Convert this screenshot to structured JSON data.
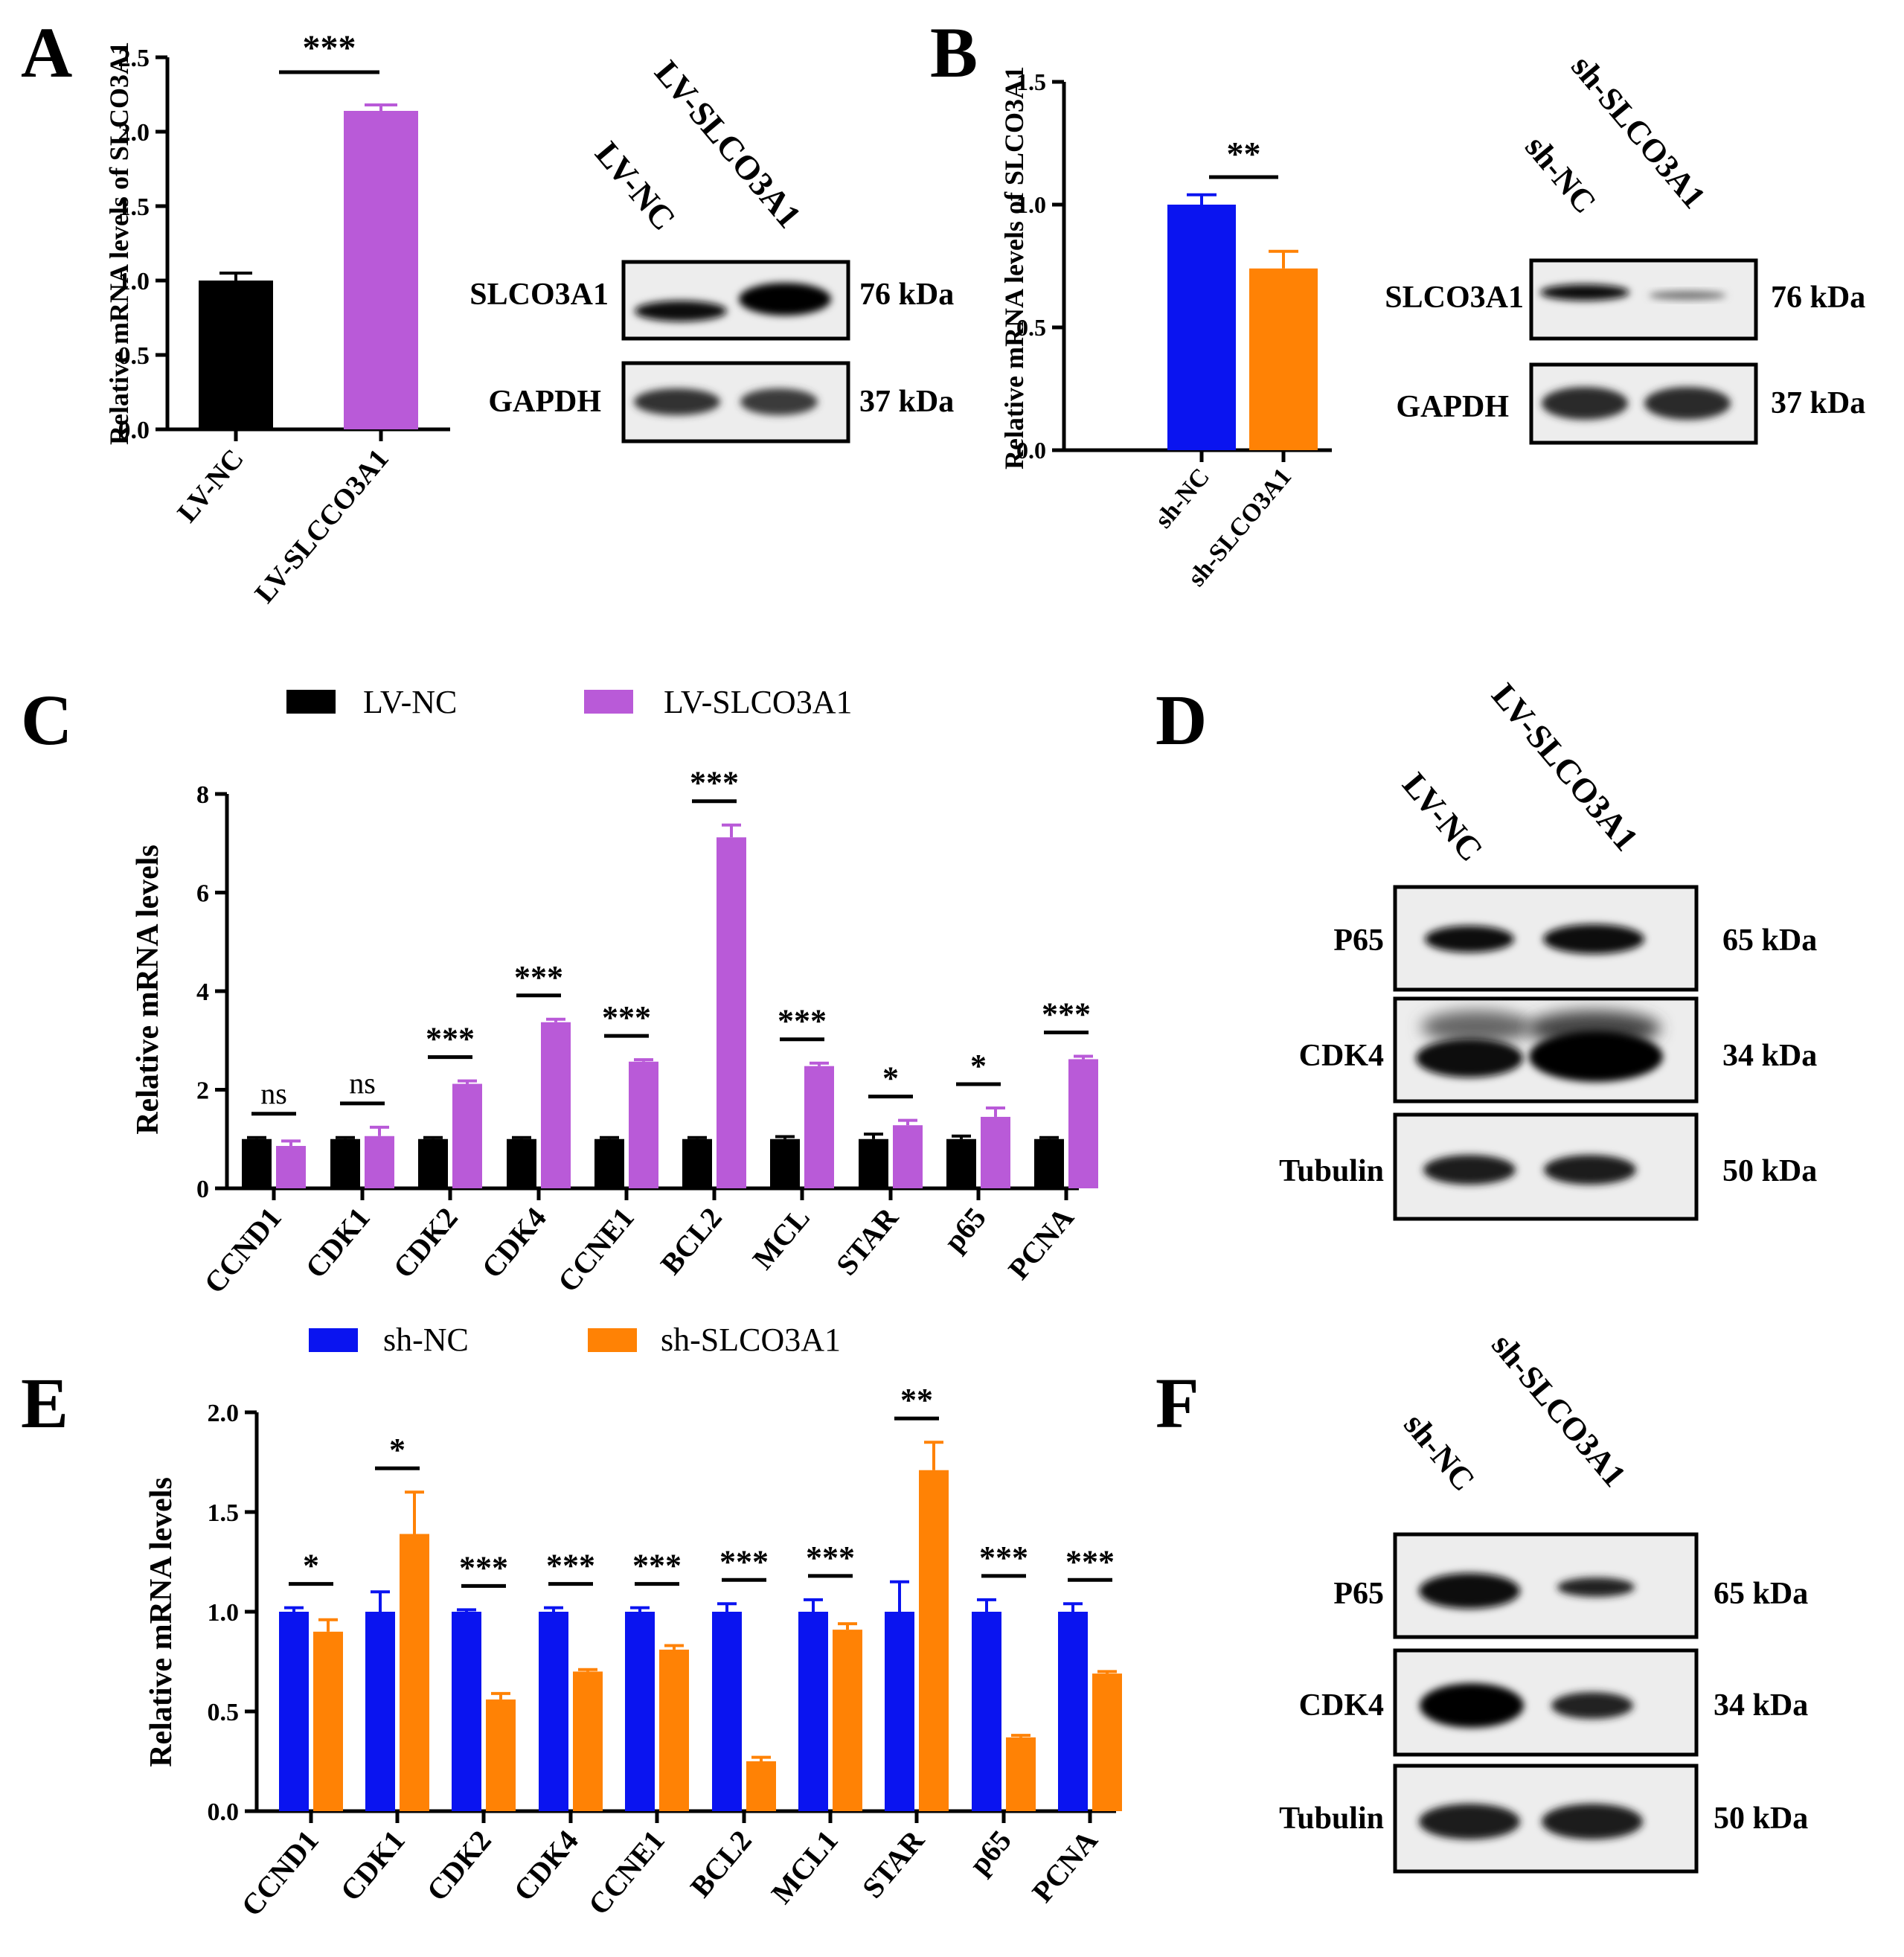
{
  "colors": {
    "lv_nc": "#000000",
    "lv_slco3a1": "#b95ad8",
    "sh_nc": "#0a14f0",
    "sh_slco3a1": "#ff8205"
  },
  "panels": {
    "A": {
      "letter": "A",
      "ylabel": "Relative mRNA levels of SLCO3A1",
      "blot_top_labels": [
        "LV-NC",
        "LV-SLCO3A1"
      ],
      "blot_rows": [
        {
          "name": "SLCO3A1",
          "kda": "76 kDa"
        },
        {
          "name": "GAPDH",
          "kda": "37 kDa"
        }
      ]
    },
    "B": {
      "letter": "B",
      "ylabel": "Relative mRNA levels of SLCO3A1",
      "blot_top_labels": [
        "sh-NC",
        "sh-SLCO3A1"
      ],
      "blot_rows": [
        {
          "name": "SLCO3A1",
          "kda": "76 kDa"
        },
        {
          "name": "GAPDH",
          "kda": "37 kDa"
        }
      ]
    },
    "C": {
      "letter": "C",
      "ylabel": "Relative mRNA levels"
    },
    "D": {
      "letter": "D",
      "blot_top_labels": [
        "LV-NC",
        "LV-SLCO3A1"
      ],
      "blot_rows": [
        {
          "name": "P65",
          "kda": "65 kDa"
        },
        {
          "name": "CDK4",
          "kda": "34 kDa"
        },
        {
          "name": "Tubulin",
          "kda": "50 kDa"
        }
      ]
    },
    "E": {
      "letter": "E",
      "ylabel": "Relative mRNA levels"
    },
    "F": {
      "letter": "F",
      "blot_top_labels": [
        "sh-NC",
        "sh-SLCO3A1"
      ],
      "blot_rows": [
        {
          "name": "P65",
          "kda": "65 kDa"
        },
        {
          "name": "CDK4",
          "kda": "34 kDa"
        },
        {
          "name": "Tubulin",
          "kda": "50 kDa"
        }
      ]
    }
  },
  "chart_data": [
    {
      "id": "A",
      "type": "bar",
      "categories": [
        "LV-NC",
        "LV-SLCCO3A1"
      ],
      "values": [
        1.0,
        2.14
      ],
      "errors": [
        0.05,
        0.04
      ],
      "colors": [
        "#000000",
        "#b95ad8"
      ],
      "significance": "***",
      "ylim": [
        0,
        2.5
      ],
      "yticks": [
        "0.0",
        "0.5",
        "1.0",
        "1.5",
        "2.0",
        "2.5"
      ],
      "ylabel": "Relative mRNA levels of SLCO3A1"
    },
    {
      "id": "B",
      "type": "bar",
      "categories": [
        "sh-NC",
        "sh-SLCO3A1"
      ],
      "values": [
        1.0,
        0.74
      ],
      "errors": [
        0.04,
        0.07
      ],
      "colors": [
        "#0a14f0",
        "#ff8205"
      ],
      "significance": "**",
      "ylim": [
        0,
        1.5
      ],
      "yticks": [
        "0.0",
        "0.5",
        "1.0",
        "1.5"
      ],
      "ylabel": "Relative mRNA levels of SLCO3A1"
    },
    {
      "id": "C",
      "type": "bar",
      "categories": [
        "CCND1",
        "CDK1",
        "CDK2",
        "CDK4",
        "CCNE1",
        "BCL2",
        "MCL",
        "STAR",
        "p65",
        "PCNA"
      ],
      "series": [
        {
          "name": "LV-NC",
          "color": "#000000",
          "values": [
            1.0,
            1.0,
            1.0,
            1.0,
            1.0,
            1.0,
            1.0,
            1.0,
            1.0,
            1.0
          ],
          "errors": [
            0.03,
            0.03,
            0.03,
            0.03,
            0.03,
            0.03,
            0.05,
            0.1,
            0.06,
            0.03
          ]
        },
        {
          "name": "LV-SLCO3A1",
          "color": "#b95ad8",
          "values": [
            0.86,
            1.06,
            2.12,
            3.37,
            2.57,
            7.12,
            2.48,
            1.28,
            1.45,
            2.62
          ],
          "errors": [
            0.1,
            0.18,
            0.06,
            0.06,
            0.04,
            0.25,
            0.06,
            0.1,
            0.18,
            0.06
          ]
        }
      ],
      "significance": [
        "ns",
        "ns",
        "***",
        "***",
        "***",
        "***",
        "***",
        "*",
        "*",
        "***"
      ],
      "ylim": [
        0,
        8
      ],
      "yticks": [
        "0",
        "2",
        "4",
        "6",
        "8"
      ],
      "ylabel": "Relative mRNA levels"
    },
    {
      "id": "E",
      "type": "bar",
      "categories": [
        "CCND1",
        "CDK1",
        "CDK2",
        "CDK4",
        "CCNE1",
        "BCL2",
        "MCL1",
        "STAR",
        "p65",
        "PCNA"
      ],
      "series": [
        {
          "name": "sh-NC",
          "color": "#0a14f0",
          "values": [
            1.0,
            1.0,
            1.0,
            1.0,
            1.0,
            1.0,
            1.0,
            1.0,
            1.0,
            1.0
          ],
          "errors": [
            0.02,
            0.1,
            0.01,
            0.02,
            0.02,
            0.04,
            0.06,
            0.15,
            0.06,
            0.04
          ]
        },
        {
          "name": "sh-SLCO3A1",
          "color": "#ff8205",
          "values": [
            0.9,
            1.39,
            0.56,
            0.7,
            0.81,
            0.25,
            0.91,
            1.71,
            0.37,
            0.69
          ],
          "errors": [
            0.06,
            0.21,
            0.03,
            0.01,
            0.02,
            0.02,
            0.03,
            0.14,
            0.01,
            0.01
          ]
        }
      ],
      "significance": [
        "*",
        "*",
        "***",
        "***",
        "***",
        "***",
        "***",
        "**",
        "***",
        "***"
      ],
      "ylim": [
        0,
        2.0
      ],
      "yticks": [
        "0.0",
        "0.5",
        "1.0",
        "1.5",
        "2.0"
      ],
      "ylabel": "Relative mRNA levels"
    }
  ]
}
